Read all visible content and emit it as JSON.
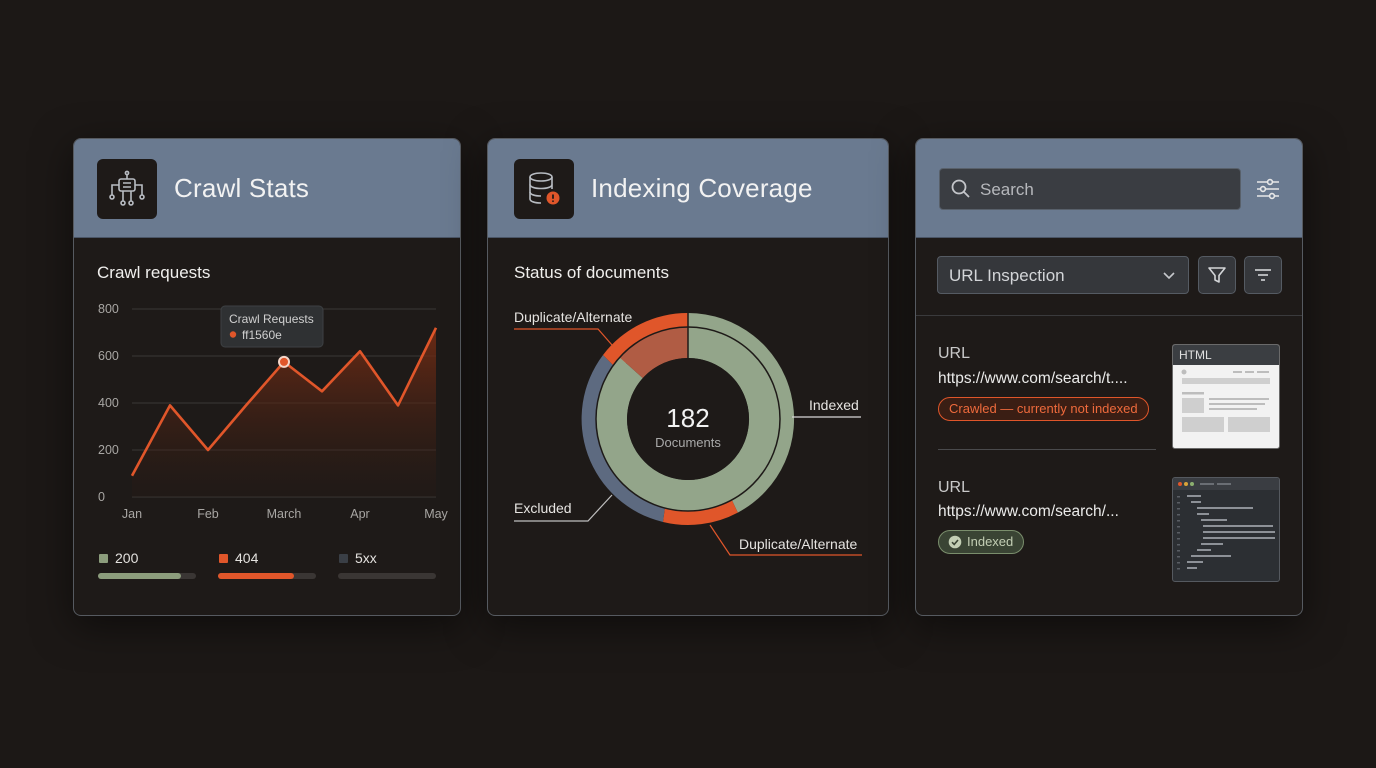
{
  "crawl_stats": {
    "title": "Crawl Stats",
    "icon": "robot-crawler-icon",
    "section_label": "Crawl requests",
    "tooltip": {
      "title": "Crawl Requests",
      "value": "ff1560e"
    },
    "legend": [
      {
        "label": "200",
        "color": "#8c9d7c",
        "fill_fraction": 0.85
      },
      {
        "label": "404",
        "color": "#e0562a",
        "fill_fraction": 0.78
      },
      {
        "label": "5xx",
        "color": "#3a3f46",
        "fill_fraction": 0.0
      }
    ],
    "chart_data": {
      "type": "line",
      "title": "",
      "xlabel": "",
      "ylabel": "",
      "x": [
        "Jan",
        "",
        "Feb",
        "",
        "March",
        "",
        "Apr",
        "",
        "May"
      ],
      "x_tick_labels": [
        "Jan",
        "Feb",
        "March",
        "Apr",
        "May"
      ],
      "yticks": [
        "800",
        "600",
        "400",
        "200",
        "0"
      ],
      "ylim": [
        0,
        800
      ],
      "series": [
        {
          "values": [
            90,
            390,
            200,
            390,
            575,
            450,
            620,
            390,
            720
          ]
        }
      ],
      "highlight_index": 4,
      "area_fill": true,
      "grid": true,
      "line_color": "#e0562a"
    }
  },
  "indexing_coverage": {
    "title": "Indexing Coverage",
    "icon": "database-warning-icon",
    "section_label": "Status of documents",
    "center_value": "182",
    "center_label": "Documents",
    "labels": {
      "duplicate_top": "Duplicate/Alternate",
      "indexed": "Indexed",
      "excluded": "Excluded",
      "duplicate_bottom": "Duplicate/Alternate"
    },
    "colors": {
      "indexed": "#93a58a",
      "duplicate": "#e0562a",
      "excluded": "#5d6a80"
    }
  },
  "url_inspection": {
    "search_placeholder": "Search",
    "search_icon": "search-icon",
    "settings_icon": "sliders-icon",
    "select_value": "URL Inspection",
    "filter_icon": "filter-icon",
    "sort_icon": "sort-lines-icon",
    "results": [
      {
        "label": "URL",
        "url": "https://www.com/search/t....",
        "status": "Crawled — currently not indexed",
        "thumb_label": "HTML"
      },
      {
        "label": "URL",
        "url": "https://www.com/search/...",
        "status": "Indexed"
      }
    ]
  }
}
